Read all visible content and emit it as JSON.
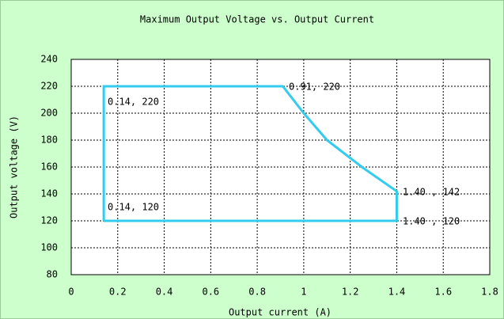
{
  "chart_data": {
    "type": "line",
    "title": "Maximum Output Voltage vs. Output Current",
    "x_label": "Output current (A)",
    "y_label": "Output voltage (V)",
    "x": [
      0.14,
      0.14,
      0.91,
      1.0,
      1.1,
      1.25,
      1.4,
      1.4,
      0.14
    ],
    "values": [
      120,
      220,
      220,
      200,
      180,
      160,
      142,
      120,
      120
    ],
    "color": "#33ccee",
    "xlim": [
      0,
      1.8
    ],
    "xticks": [
      0,
      0.2,
      0.4,
      0.6,
      0.8,
      1,
      1.2,
      1.4,
      1.6,
      1.8
    ],
    "ylim": [
      80,
      240
    ],
    "yticks": [
      80,
      100,
      120,
      140,
      160,
      180,
      200,
      220,
      240
    ],
    "grid": true,
    "annotations": [
      "0.14, 220",
      "0.91, 220",
      "0.14, 120",
      "1.40 , 142",
      "1.40 , 120"
    ]
  }
}
